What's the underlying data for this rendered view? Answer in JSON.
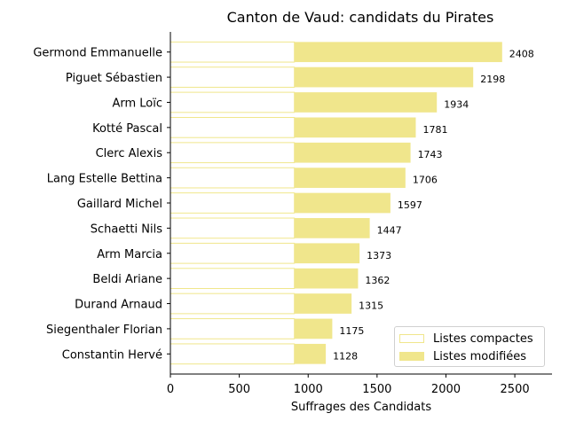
{
  "chart_data": {
    "type": "bar",
    "orientation": "horizontal",
    "stacked": true,
    "title": "Canton de Vaud: candidats du Pirates",
    "xlabel": "Suffrages des Candidats",
    "ylabel": "",
    "xlim": [
      0,
      2770
    ],
    "xticks": [
      "0",
      "500",
      "1000",
      "1500",
      "2000",
      "2500"
    ],
    "grid": false,
    "legend_position": "lower-right",
    "categories": [
      "Germond Emmanuelle",
      "Piguet Sébastien",
      "Arm Loïc",
      "Kotté Pascal",
      "Clerc Alexis",
      "Lang Estelle Bettina",
      "Gaillard Michel",
      "Schaetti Nils",
      "Arm Marcia",
      "Beldi Ariane",
      "Durand Arnaud",
      "Siegenthaler Florian",
      "Constantin Hervé"
    ],
    "totals": [
      "2408",
      "2198",
      "1934",
      "1781",
      "1743",
      "1706",
      "1597",
      "1447",
      "1373",
      "1362",
      "1315",
      "1175",
      "1128"
    ],
    "series": [
      {
        "name": "Listes compactes",
        "color": "#ffffff",
        "edge_color": "#f0e68c",
        "values": [
          900,
          900,
          900,
          900,
          900,
          900,
          900,
          900,
          900,
          900,
          900,
          900,
          900
        ]
      },
      {
        "name": "Listes modifiées",
        "color": "#f0e68c",
        "edge_color": "#f0e68c",
        "values": [
          1508,
          1298,
          1034,
          881,
          843,
          806,
          697,
          547,
          473,
          462,
          415,
          275,
          228
        ]
      }
    ]
  }
}
